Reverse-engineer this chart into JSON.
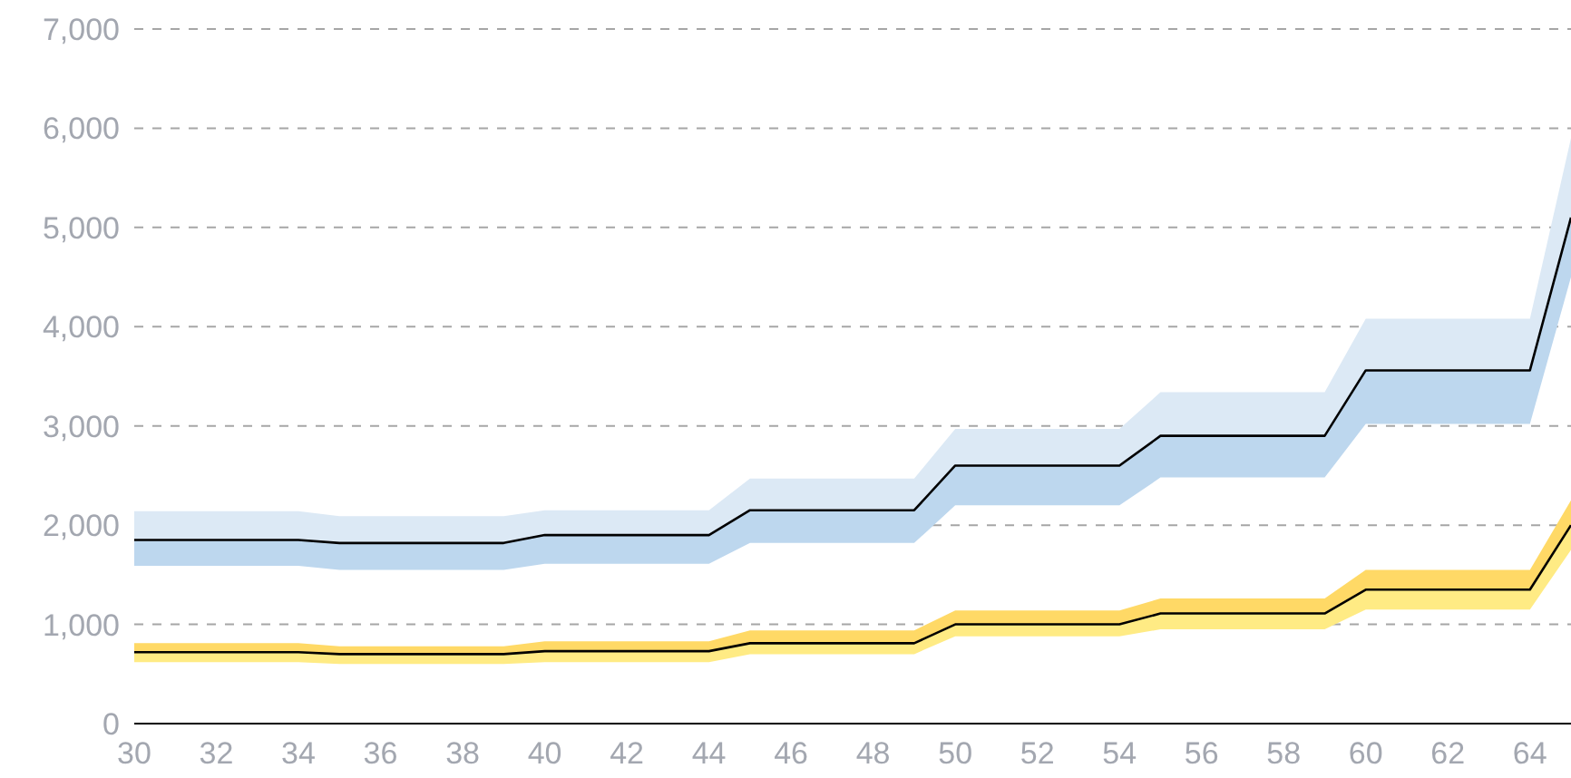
{
  "chart_data": {
    "type": "line",
    "x": [
      30,
      31,
      32,
      33,
      34,
      35,
      36,
      37,
      38,
      39,
      40,
      41,
      42,
      43,
      44,
      45,
      46,
      47,
      48,
      49,
      50,
      51,
      52,
      53,
      54,
      55,
      56,
      57,
      58,
      59,
      60,
      61,
      62,
      63,
      64,
      65
    ],
    "xlim": [
      30,
      65
    ],
    "xticks": [
      30,
      32,
      34,
      36,
      38,
      40,
      42,
      44,
      46,
      48,
      50,
      52,
      54,
      56,
      58,
      60,
      62,
      64
    ],
    "ylim": [
      0,
      7000
    ],
    "yticks": [
      0,
      {
        "value": 1000,
        "label": "1,000"
      },
      {
        "value": 2000,
        "label": "2,000"
      },
      {
        "value": 3000,
        "label": "3,000"
      },
      {
        "value": 4000,
        "label": "4,000"
      },
      {
        "value": 5000,
        "label": "5,000"
      },
      {
        "value": 6000,
        "label": "6,000"
      },
      {
        "value": 7000,
        "label": "7,000"
      }
    ],
    "grid": "y",
    "legend": false,
    "marker": "none",
    "line_style": "solid",
    "series": [
      {
        "color": "#bdd7ee",
        "values": [
          null,
          null,
          null,
          null,
          null,
          null,
          null,
          null,
          null,
          null,
          null,
          null,
          null,
          null,
          null,
          null,
          null,
          null,
          null,
          null,
          null,
          null,
          null,
          null,
          null,
          null,
          null,
          null,
          null,
          null,
          null,
          null,
          null,
          null,
          null,
          null
        ],
        "lower": [
          1590,
          1590,
          1590,
          1590,
          1590,
          1550,
          1550,
          1550,
          1550,
          1550,
          1610,
          1610,
          1610,
          1610,
          1610,
          1820,
          1820,
          1820,
          1820,
          1820,
          2200,
          2200,
          2200,
          2200,
          2200,
          2480,
          2480,
          2480,
          2480,
          2480,
          3020,
          3020,
          3020,
          3020,
          3020,
          4500
        ],
        "upper": [
          1850,
          1850,
          1850,
          1850,
          1850,
          1820,
          1820,
          1820,
          1820,
          1820,
          1900,
          1900,
          1900,
          1900,
          1900,
          2150,
          2150,
          2150,
          2150,
          2150,
          2600,
          2600,
          2600,
          2600,
          2600,
          2900,
          2900,
          2900,
          2900,
          2900,
          3560,
          3560,
          3560,
          3560,
          3560,
          5100
        ]
      },
      {
        "color": "#dce9f5",
        "values": [
          null,
          null,
          null,
          null,
          null,
          null,
          null,
          null,
          null,
          null,
          null,
          null,
          null,
          null,
          null,
          null,
          null,
          null,
          null,
          null,
          null,
          null,
          null,
          null,
          null,
          null,
          null,
          null,
          null,
          null,
          null,
          null,
          null,
          null,
          null,
          null
        ],
        "lower": [
          1850,
          1850,
          1850,
          1850,
          1850,
          1820,
          1820,
          1820,
          1820,
          1820,
          1900,
          1900,
          1900,
          1900,
          1900,
          2150,
          2150,
          2150,
          2150,
          2150,
          2600,
          2600,
          2600,
          2600,
          2600,
          2900,
          2900,
          2900,
          2900,
          2900,
          3560,
          3560,
          3560,
          3560,
          3560,
          5100
        ],
        "upper": [
          2140,
          2140,
          2140,
          2140,
          2140,
          2090,
          2090,
          2090,
          2090,
          2090,
          2150,
          2150,
          2150,
          2150,
          2150,
          2470,
          2470,
          2470,
          2470,
          2470,
          2970,
          2970,
          2970,
          2970,
          2970,
          3340,
          3340,
          3340,
          3340,
          3340,
          4080,
          4080,
          4080,
          4080,
          4080,
          5900
        ]
      },
      {
        "color": "#ffeb84",
        "values": [
          null,
          null,
          null,
          null,
          null,
          null,
          null,
          null,
          null,
          null,
          null,
          null,
          null,
          null,
          null,
          null,
          null,
          null,
          null,
          null,
          null,
          null,
          null,
          null,
          null,
          null,
          null,
          null,
          null,
          null,
          null,
          null,
          null,
          null,
          null,
          null
        ],
        "lower": [
          620,
          620,
          620,
          620,
          620,
          600,
          600,
          600,
          600,
          600,
          620,
          620,
          620,
          620,
          620,
          700,
          700,
          700,
          700,
          700,
          880,
          880,
          880,
          880,
          880,
          950,
          950,
          950,
          950,
          950,
          1150,
          1150,
          1150,
          1150,
          1150,
          1750
        ],
        "upper": [
          720,
          720,
          720,
          720,
          720,
          700,
          700,
          700,
          700,
          700,
          730,
          730,
          730,
          730,
          730,
          810,
          810,
          810,
          810,
          810,
          1000,
          1000,
          1000,
          1000,
          1000,
          1110,
          1110,
          1110,
          1110,
          1110,
          1350,
          1350,
          1350,
          1350,
          1350,
          2000
        ]
      },
      {
        "color": "#ffd966",
        "values": [
          null,
          null,
          null,
          null,
          null,
          null,
          null,
          null,
          null,
          null,
          null,
          null,
          null,
          null,
          null,
          null,
          null,
          null,
          null,
          null,
          null,
          null,
          null,
          null,
          null,
          null,
          null,
          null,
          null,
          null,
          null,
          null,
          null,
          null,
          null,
          null
        ],
        "lower": [
          720,
          720,
          720,
          720,
          720,
          700,
          700,
          700,
          700,
          700,
          730,
          730,
          730,
          730,
          730,
          810,
          810,
          810,
          810,
          810,
          1000,
          1000,
          1000,
          1000,
          1000,
          1110,
          1110,
          1110,
          1110,
          1110,
          1350,
          1350,
          1350,
          1350,
          1350,
          2000
        ],
        "upper": [
          810,
          810,
          810,
          810,
          810,
          780,
          780,
          780,
          780,
          780,
          830,
          830,
          830,
          830,
          830,
          940,
          940,
          940,
          940,
          940,
          1140,
          1140,
          1140,
          1140,
          1140,
          1260,
          1260,
          1260,
          1260,
          1260,
          1550,
          1550,
          1550,
          1550,
          1550,
          2250
        ]
      },
      {
        "color": "#000000",
        "values": [
          1850,
          1850,
          1850,
          1850,
          1850,
          1820,
          1820,
          1820,
          1820,
          1820,
          1900,
          1900,
          1900,
          1900,
          1900,
          2150,
          2150,
          2150,
          2150,
          2150,
          2600,
          2600,
          2600,
          2600,
          2600,
          2900,
          2900,
          2900,
          2900,
          2900,
          3560,
          3560,
          3560,
          3560,
          3560,
          5100
        ]
      },
      {
        "color": "#000000",
        "values": [
          720,
          720,
          720,
          720,
          720,
          700,
          700,
          700,
          700,
          700,
          730,
          730,
          730,
          730,
          730,
          810,
          810,
          810,
          810,
          810,
          1000,
          1000,
          1000,
          1000,
          1000,
          1110,
          1110,
          1110,
          1110,
          1110,
          1350,
          1350,
          1350,
          1350,
          1350,
          2000
        ]
      }
    ]
  }
}
